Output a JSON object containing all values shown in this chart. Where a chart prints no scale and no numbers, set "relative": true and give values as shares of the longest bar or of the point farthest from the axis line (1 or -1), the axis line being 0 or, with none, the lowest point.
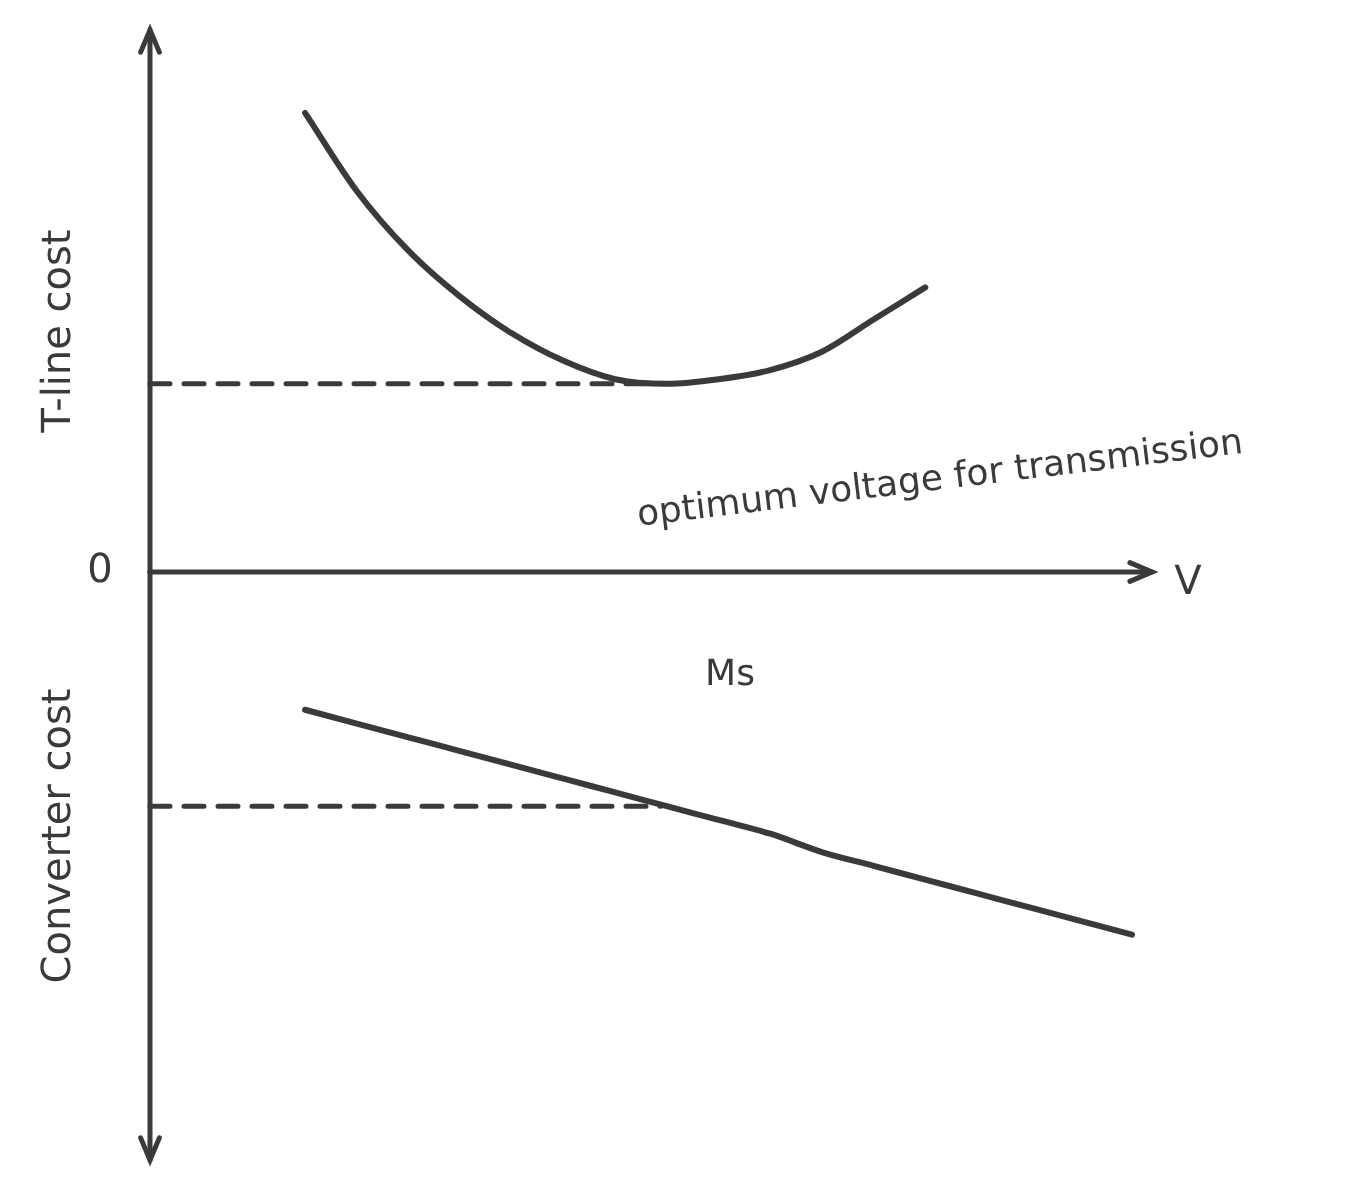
{
  "chart_data": {
    "type": "line",
    "relative": true,
    "ylabel": "T-line cost",
    "xlabel": "V",
    "color": "#3a3a3a",
    "line_style": "solid",
    "marker": "none",
    "legend": false,
    "categories": [
      null,
      null,
      null,
      null,
      null,
      null,
      null,
      null,
      null,
      null,
      null,
      null,
      null,
      null,
      null,
      null,
      null,
      null,
      null,
      null
    ],
    "series": [
      {
        "color": "#3a3a3a",
        "values": [
          null,
          null,
          null,
          1.0,
          0.83,
          0.7,
          0.6,
          0.52,
          0.46,
          0.42,
          0.41,
          0.42,
          0.44,
          0.48,
          0.55,
          0.62,
          null,
          null,
          null,
          null
        ]
      },
      {
        "color": "#3a3a3a",
        "values": [
          null,
          null,
          null,
          -0.3,
          -0.33,
          -0.36,
          -0.39,
          -0.42,
          -0.45,
          -0.48,
          -0.51,
          -0.54,
          -0.57,
          -0.61,
          -0.64,
          -0.67,
          -0.7,
          -0.73,
          -0.76,
          -0.79
        ]
      }
    ],
    "ref_lines": [
      {
        "axis": "y",
        "value": 0.41,
        "line_style": "dashed",
        "color": "#3a3a3a"
      },
      {
        "axis": "y",
        "value": -0.51,
        "line_style": "dashed",
        "color": "#3a3a3a"
      }
    ],
    "annotations": [
      "0",
      "optimum voltage for transmission",
      "Ms",
      "Converter cost"
    ]
  }
}
